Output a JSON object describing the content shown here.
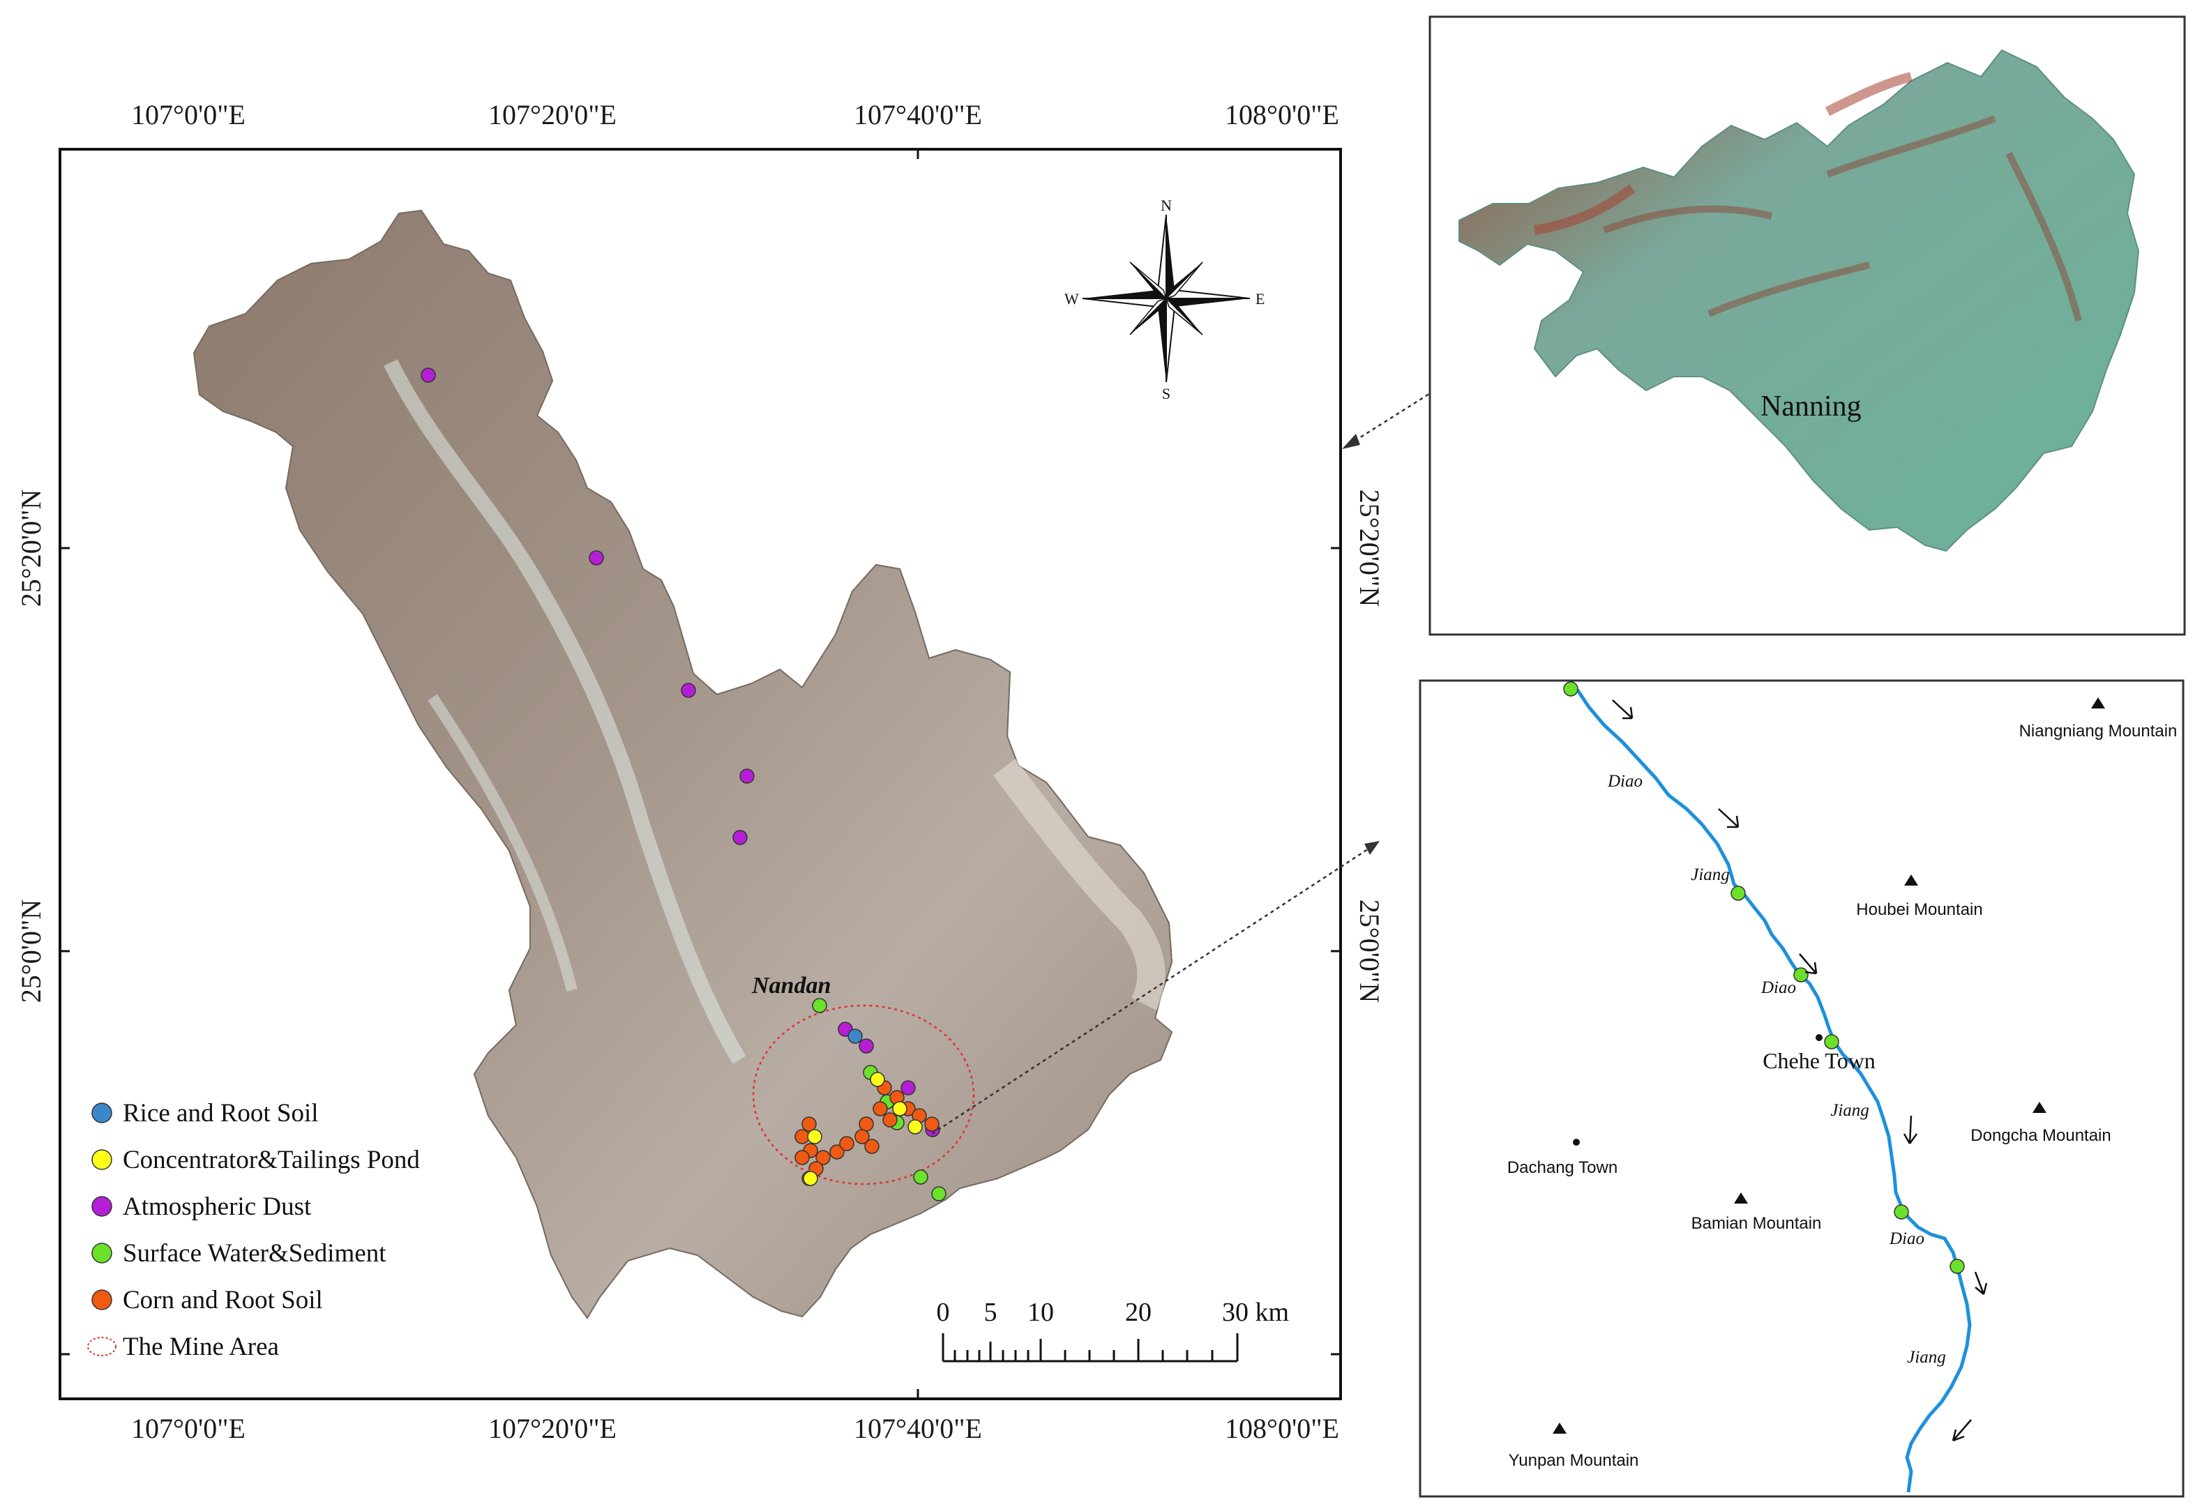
{
  "main_map": {
    "lon_labels": [
      "107°0'0\"E",
      "107°20'0\"E",
      "107°40'0\"E",
      "108°0'0\"E"
    ],
    "lat_labels": [
      "25°20'0\"N",
      "25°0'0\"N"
    ],
    "city_label": "Nandan",
    "compass": {
      "n": "N",
      "s": "S",
      "e": "E",
      "w": "W"
    },
    "scale": {
      "ticks": [
        "0",
        "5",
        "10",
        "20",
        "30 km"
      ]
    },
    "legend": [
      {
        "label": "Rice and Root Soil",
        "color": "#3b87c9"
      },
      {
        "label": "Concentrator&Tailings Pond",
        "color": "#ffff1a"
      },
      {
        "label": "Atmospheric Dust",
        "color": "#b51ed6"
      },
      {
        "label": "Surface Water&Sediment",
        "color": "#6be22a"
      },
      {
        "label": "Corn and Root Soil",
        "color": "#f05a12"
      },
      {
        "label": "The Mine Area",
        "color": "#e0342c"
      }
    ]
  },
  "inset_region": {
    "city_label": "Nanning"
  },
  "inset_detail": {
    "mountains": [
      {
        "label": "Niangniang Mountain"
      },
      {
        "label": "Houbei Mountain"
      },
      {
        "label": "Dongcha Mountain"
      },
      {
        "label": "Bamian Mountain"
      },
      {
        "label": "Yunpan Mountain"
      }
    ],
    "towns": [
      {
        "label": "Chehe Town"
      },
      {
        "label": "Dachang Town"
      }
    ],
    "river_labels": [
      "Diao",
      "Jiang",
      "Diao",
      "Jiang",
      "Diao",
      "Jiang"
    ],
    "colors": {
      "river": "#1e90dc",
      "sample": "#6be22a"
    }
  }
}
